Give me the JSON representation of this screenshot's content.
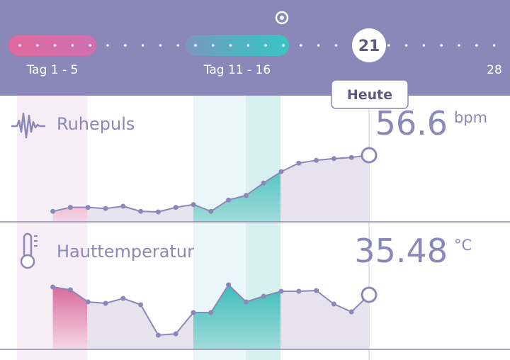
{
  "header": {
    "ranges": [
      {
        "label": "Tag 1 - 5"
      },
      {
        "label": "Tag 11 - 16"
      }
    ],
    "today_day": "21",
    "end_label": "28",
    "today_label": "Heute"
  },
  "metrics": [
    {
      "name": "Ruhepuls",
      "value": 56.6,
      "unit": "bpm",
      "values": [
        46.7,
        47.4,
        47.4,
        47.2,
        47.6,
        46.7,
        46.6,
        47.4,
        47.9,
        46.7,
        48.7,
        49.5,
        51.7,
        53.7,
        55.2,
        55.7,
        56.0,
        56.2,
        56.6
      ]
    },
    {
      "name": "Hauttemperatur",
      "value": 35.48,
      "unit": "°C",
      "values": [
        35.59,
        35.55,
        35.38,
        35.36,
        35.43,
        35.34,
        34.91,
        34.93,
        35.23,
        35.23,
        35.62,
        35.38,
        35.46,
        35.53,
        35.53,
        35.54,
        35.35,
        35.24,
        35.48
      ]
    }
  ]
}
